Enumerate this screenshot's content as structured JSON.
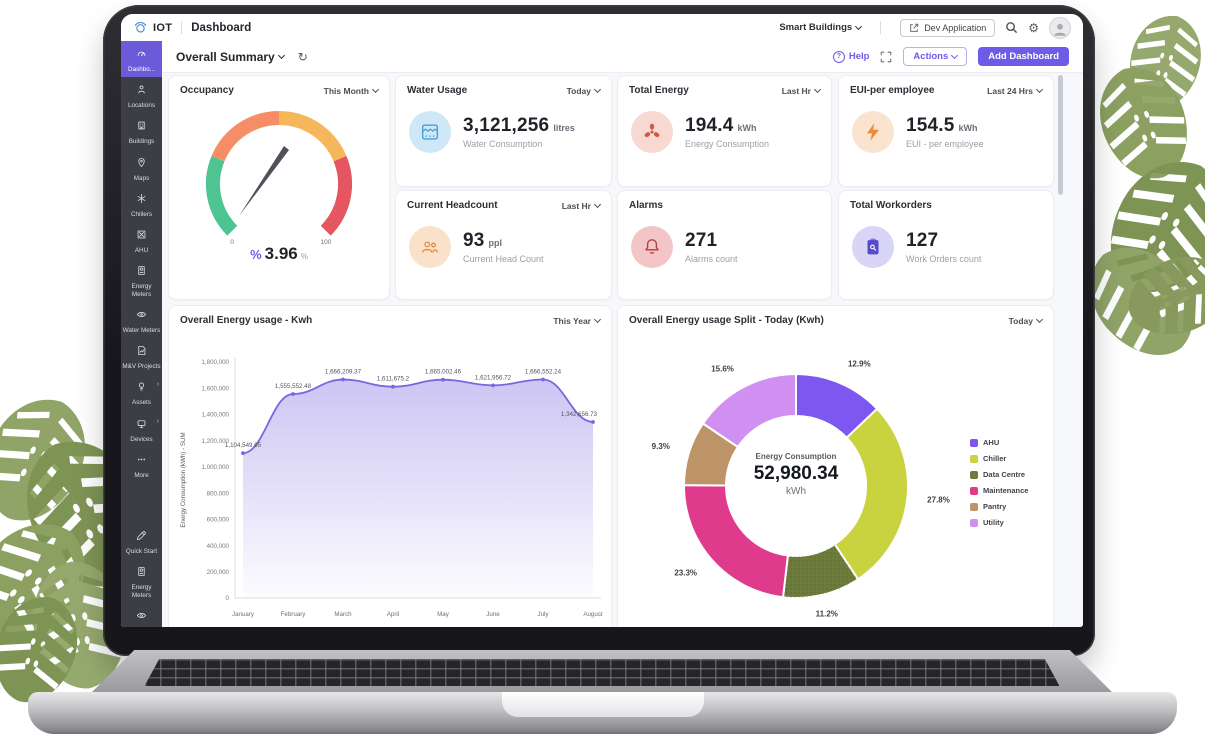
{
  "theme": {
    "accent": "#6c5ce7",
    "sidebar_bg": "#3b3e45",
    "sidebar_active": "#6c5bd9",
    "page_bg": "#f7f8fb",
    "brand_blue": "#4a93d9"
  },
  "topbar": {
    "brand": "IOT",
    "page_title": "Dashboard",
    "org": "Smart Buildings",
    "dev_application": "Dev Application"
  },
  "toolbar": {
    "selector": "Overall Summary",
    "help": "Help",
    "actions": "Actions",
    "add": "Add Dashboard"
  },
  "sidebar": {
    "items": [
      {
        "label": "Dashbo...",
        "icon": "gauge",
        "active": true
      },
      {
        "label": "Locations",
        "icon": "person"
      },
      {
        "label": "Buildings",
        "icon": "building"
      },
      {
        "label": "Maps",
        "icon": "pin"
      },
      {
        "label": "Chillers",
        "icon": "chiller"
      },
      {
        "label": "AHU",
        "icon": "ahu"
      },
      {
        "label": "Energy Meters",
        "icon": "meter"
      },
      {
        "label": "Water Meters",
        "icon": "water"
      },
      {
        "label": "M&V Projects",
        "icon": "mv"
      },
      {
        "label": "Assets",
        "icon": "bulb",
        "has_children": true
      },
      {
        "label": "Devices",
        "icon": "device",
        "has_children": true
      },
      {
        "label": "More",
        "icon": "dots"
      },
      {
        "label": "Quick Start",
        "icon": "rocket",
        "gap": true
      },
      {
        "label": "Energy Meters",
        "icon": "meter"
      },
      {
        "label": "Water Meters",
        "icon": "water"
      },
      {
        "label": "",
        "icon": "mv"
      }
    ]
  },
  "cards": {
    "kpis": [
      {
        "id": "water-usage",
        "title": "Water Usage",
        "range": "Today",
        "value": "3,121,256",
        "unit": "litres",
        "label": "Water Consumption",
        "icon": "water-meter",
        "icon_color": "#4b9fd6",
        "icon_bg": "#cfe8f7"
      },
      {
        "id": "total-energy",
        "title": "Total Energy",
        "range": "Last Hr",
        "value": "194.4",
        "unit": "kWh",
        "label": "Energy Consumption",
        "icon": "energy-fan",
        "icon_color": "#cd594b",
        "icon_bg": "#f7d9d2"
      },
      {
        "id": "eui-per-employee",
        "title": "EUI-per employee",
        "range": "Last 24 Hrs",
        "value": "154.5",
        "unit": "kWh",
        "label": "EUI - per employee",
        "icon": "bolt",
        "icon_color": "#ee8a35",
        "icon_bg": "#fbe4cf"
      },
      {
        "id": "current-headcount",
        "title": "Current Headcount",
        "range": "Last Hr",
        "value": "93",
        "unit": "ppl",
        "label": "Current Head Count",
        "icon": "people",
        "icon_color": "#e58a3d",
        "icon_bg": "#f9e2c9"
      },
      {
        "id": "alarms",
        "title": "Alarms",
        "range": null,
        "value": "271",
        "unit": "",
        "label": "Alarms count",
        "icon": "bell",
        "icon_color": "#ad4341",
        "icon_bg": "#f4c5c7"
      },
      {
        "id": "total-workorders",
        "title": "Total Workorders",
        "range": null,
        "value": "127",
        "unit": "",
        "label": "Work Orders count",
        "icon": "clipboard",
        "icon_color": "#564cc9",
        "icon_bg": "#d8d5f6"
      }
    ]
  },
  "chart_data": [
    {
      "id": "occupancy-gauge",
      "type": "gauge",
      "title": "Occupancy",
      "range": "This Month",
      "value": 3.96,
      "value_display": "3.96",
      "value_prefix": "%",
      "value_suffix": "%",
      "min": 0,
      "max": 100,
      "min_label": "0",
      "max_label": "100",
      "segments": [
        {
          "to": 25,
          "color": "#4ec492"
        },
        {
          "to": 50,
          "color": "#f58e66"
        },
        {
          "to": 75,
          "color": "#f6b75a"
        },
        {
          "to": 100,
          "color": "#e65660"
        }
      ]
    },
    {
      "id": "energy-area",
      "type": "area",
      "title": "Overall Energy usage - Kwh",
      "range": "This Year",
      "categories": [
        "January",
        "February",
        "March",
        "April",
        "May",
        "June",
        "July",
        "August"
      ],
      "values": [
        1104549.65,
        1555552.48,
        1666209.37,
        1611675.2,
        1665002.46,
        1621956.72,
        1666552.24,
        1342656.73
      ],
      "point_labels": [
        "1,104,549.65",
        "1,555,552.48",
        "1,666,209.37",
        "1,611,675.2",
        "1,665,002.46",
        "1,621,956.72",
        "1,666,552.24",
        "1,342,656.73"
      ],
      "ylabel": "Energy Consumption (kWh) - SUM",
      "ylim": [
        0,
        1800000
      ],
      "ytick_step": 200000,
      "line_color": "#7b66e0",
      "grid": false,
      "legend_position": "none"
    },
    {
      "id": "energy-split-donut",
      "type": "pie",
      "title": "Overall Energy usage Split - Today (Kwh)",
      "range": "Today",
      "center_label": "Energy Consumption",
      "center_value": "52,980.34",
      "center_unit": "kWh",
      "slices": [
        {
          "label": "AHU",
          "pct": 12.9,
          "color": "#7d57f0"
        },
        {
          "label": "Chiller",
          "pct": 27.8,
          "color": "#c9d23f"
        },
        {
          "label": "Data Centre",
          "pct": 11.2,
          "color": "#6d7c3c"
        },
        {
          "label": "Maintenance",
          "pct": 23.3,
          "color": "#e03a8c"
        },
        {
          "label": "Pantry",
          "pct": 9.3,
          "color": "#bd9467"
        },
        {
          "label": "Utility",
          "pct": 15.6,
          "color": "#cf90f2"
        }
      ],
      "legend_position": "right"
    }
  ]
}
